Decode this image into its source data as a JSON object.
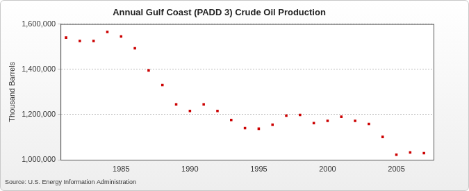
{
  "chart_data": {
    "type": "scatter",
    "title": "Annual Gulf Coast (PADD 3) Crude Oil Production",
    "y_label": "Thousand Barrels",
    "source": "Source: U.S. Energy Information Administration",
    "x": [
      1981,
      1982,
      1983,
      1984,
      1985,
      1986,
      1987,
      1988,
      1989,
      1990,
      1991,
      1992,
      1993,
      1994,
      1995,
      1996,
      1997,
      1998,
      1999,
      2000,
      2001,
      2002,
      2003,
      2004,
      2005,
      2006,
      2007
    ],
    "values": [
      1540000,
      1525000,
      1525000,
      1565000,
      1545000,
      1493000,
      1395000,
      1330000,
      1245000,
      1216000,
      1245000,
      1216000,
      1176000,
      1140000,
      1137000,
      1155000,
      1195000,
      1198000,
      1162000,
      1172000,
      1190000,
      1172000,
      1158000,
      1101000,
      1022000,
      1032000,
      1029000
    ],
    "color": "#cc0000",
    "marker": "square",
    "xlim": [
      1980.6,
      2007.7
    ],
    "xticks": [
      1985,
      1990,
      1995,
      2000,
      2005
    ],
    "ylim": [
      1000000,
      1600000
    ],
    "yticks": [
      {
        "value": 1000000,
        "label": "1,000,000"
      },
      {
        "value": 1200000,
        "label": "1,200,000"
      },
      {
        "value": 1400000,
        "label": "1,400,000"
      },
      {
        "value": 1600000,
        "label": "1,600,000"
      }
    ],
    "grid": true
  }
}
